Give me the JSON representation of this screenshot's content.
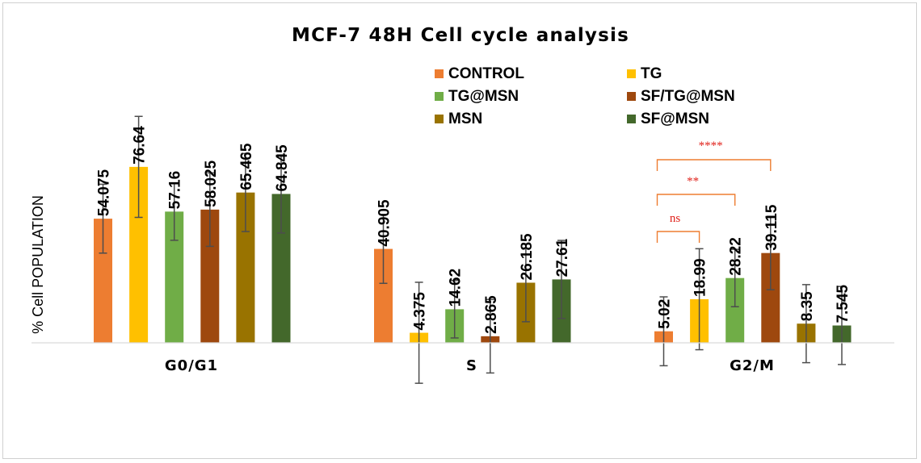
{
  "chart_data": {
    "type": "bar",
    "title": "MCF-7 48H Cell cycle analysis",
    "xlabel": "",
    "ylabel": "% Cell POPULATION",
    "ylim": [
      0,
      100
    ],
    "grid": false,
    "legend_position": "top-right",
    "categories": [
      "G0/G1",
      "S",
      "G2/M"
    ],
    "series": [
      {
        "name": "CONTROL",
        "color": "#ed7d31",
        "values": [
          54.075,
          40.905,
          5.02
        ],
        "labels": [
          "54.075",
          "40.905",
          "5.02"
        ],
        "errors": [
          15,
          15,
          15
        ]
      },
      {
        "name": "TG",
        "color": "#ffc000",
        "values": [
          76.64,
          4.375,
          18.99
        ],
        "labels": [
          "76.64",
          "4.375",
          "18.99"
        ],
        "errors": [
          22,
          22,
          22
        ]
      },
      {
        "name": "TG@MSN",
        "color": "#70ad47",
        "values": [
          57.16,
          14.62,
          28.22
        ],
        "labels": [
          "57.16",
          "14.62",
          "28.22"
        ],
        "errors": [
          12.5,
          12.5,
          12.5
        ]
      },
      {
        "name": "SF/TG@MSN",
        "color": "#9e480e",
        "values": [
          58.025,
          2.865,
          39.115
        ],
        "labels": [
          "58.025",
          "2.865",
          "39.115"
        ],
        "errors": [
          16,
          16,
          16
        ]
      },
      {
        "name": "MSN",
        "color": "#997300",
        "values": [
          65.465,
          26.185,
          8.35
        ],
        "labels": [
          "65.465",
          "26.185",
          "8.35"
        ],
        "errors": [
          17,
          17,
          17
        ]
      },
      {
        "name": "SF@MSN",
        "color": "#43682b",
        "values": [
          64.845,
          27.61,
          7.545
        ],
        "labels": [
          "64.845",
          "27.61",
          "7.545"
        ],
        "errors": [
          17,
          17,
          17
        ]
      }
    ],
    "annotations": [
      {
        "category": "G2/M",
        "from": "CONTROL",
        "to": "TG",
        "text": "ns"
      },
      {
        "category": "G2/M",
        "from": "CONTROL",
        "to": "TG@MSN",
        "text": "**"
      },
      {
        "category": "G2/M",
        "from": "CONTROL",
        "to": "SF/TG@MSN",
        "text": "****"
      }
    ],
    "annotation_color": "#ed7d31",
    "annotation_text_color": "#e0211a"
  }
}
